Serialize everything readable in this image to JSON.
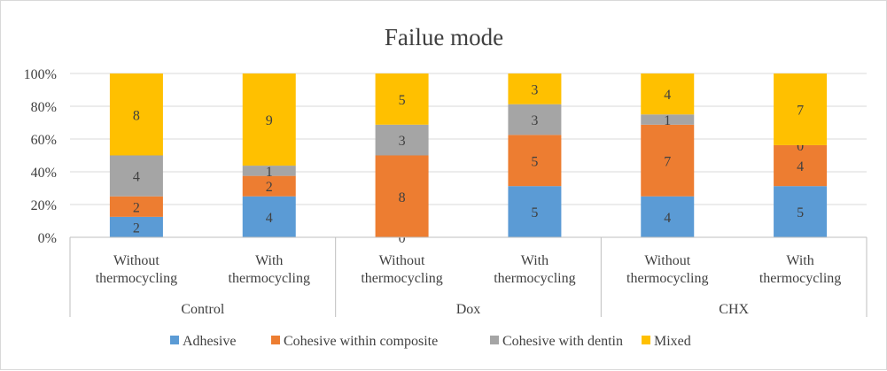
{
  "chart_data": {
    "type": "bar",
    "stacked": "percent",
    "title": "Failue mode",
    "groups": [
      {
        "name": "Control",
        "categories": [
          "Without thermocycling",
          "With thermocycling"
        ]
      },
      {
        "name": "Dox",
        "categories": [
          "Without thermocycling",
          "With thermocycling"
        ]
      },
      {
        "name": "CHX",
        "categories": [
          "Without thermocycling",
          "With thermocycling"
        ]
      }
    ],
    "categories": [
      "Without thermocycling",
      "With thermocycling",
      "Without thermocycling",
      "With thermocycling",
      "Without thermocycling",
      "With thermocycling"
    ],
    "category_lines": [
      [
        "Without",
        "thermocycling"
      ],
      [
        "With",
        "thermocycling"
      ],
      [
        "Without",
        "thermocycling"
      ],
      [
        "With",
        "thermocycling"
      ],
      [
        "Without",
        "thermocycling"
      ],
      [
        "With",
        "thermocycling"
      ]
    ],
    "series": [
      {
        "name": "Adhesive",
        "color": "#5b9bd5",
        "values": [
          2,
          4,
          0,
          5,
          4,
          5
        ]
      },
      {
        "name": "Cohesive within composite",
        "color": "#ed7d31",
        "values": [
          2,
          2,
          8,
          5,
          7,
          4
        ]
      },
      {
        "name": "Cohesive with dentin",
        "color": "#a5a5a5",
        "values": [
          4,
          1,
          3,
          3,
          1,
          0
        ]
      },
      {
        "name": "Mixed",
        "color": "#ffc000",
        "values": [
          8,
          9,
          5,
          3,
          4,
          7
        ]
      }
    ],
    "ylim": [
      0,
      100
    ],
    "yticks": [
      "0%",
      "20%",
      "40%",
      "60%",
      "80%",
      "100%"
    ],
    "grid": true,
    "legend": "bottom"
  }
}
